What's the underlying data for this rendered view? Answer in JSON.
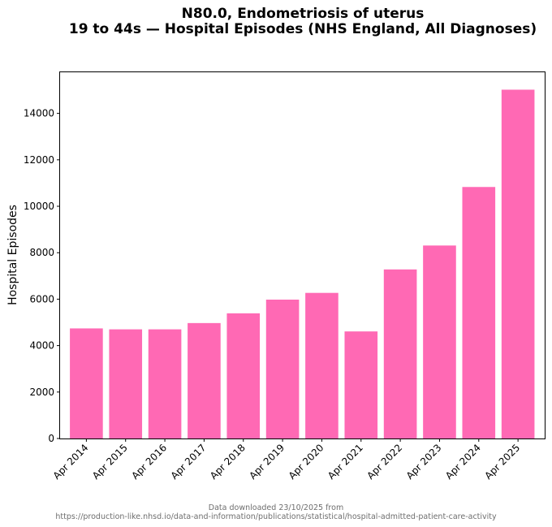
{
  "chart_data": {
    "type": "bar",
    "title_line1": "N80.0, Endometriosis of uterus",
    "title_line2": "19 to 44s — Hospital Episodes (NHS England, All Diagnoses)",
    "xlabel": "",
    "ylabel": "Hospital Episodes",
    "categories": [
      "Apr 2014",
      "Apr 2015",
      "Apr 2016",
      "Apr 2017",
      "Apr 2018",
      "Apr 2019",
      "Apr 2020",
      "Apr 2021",
      "Apr 2022",
      "Apr 2023",
      "Apr 2024",
      "Apr 2025"
    ],
    "values": [
      4740,
      4700,
      4700,
      4970,
      5390,
      5980,
      6270,
      4610,
      7280,
      8310,
      10830,
      15020
    ],
    "yticks": [
      0,
      2000,
      4000,
      6000,
      8000,
      10000,
      12000,
      14000
    ],
    "ylim": [
      0,
      15770
    ],
    "bar_color": "#ff69b4",
    "grid": false,
    "footer_line1": "Data downloaded 23/10/2025 from",
    "footer_line2": "https://production-like.nhsd.io/data-and-information/publications/statistical/hospital-admitted-patient-care-activity"
  }
}
